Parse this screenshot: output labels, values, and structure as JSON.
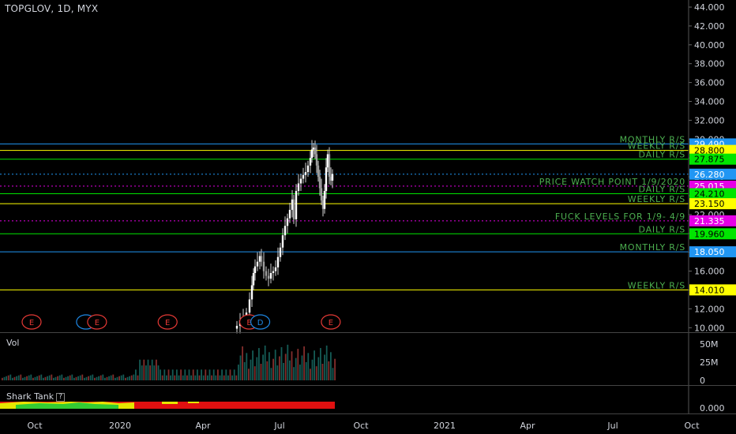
{
  "header": {
    "symbol": "TOPGLOV, 1D, MYX"
  },
  "colors": {
    "blue": "#2196f3",
    "green": "#00e500",
    "yellow": "#ffff00",
    "magenta": "#e600e6",
    "label_green": "#4caf50"
  },
  "price_axis": {
    "ticks": [
      "44.000",
      "42.000",
      "40.000",
      "38.000",
      "36.000",
      "34.000",
      "32.000",
      "30.000",
      "28.000",
      "26.000",
      "24.000",
      "22.000",
      "20.000",
      "18.000",
      "16.000",
      "14.000",
      "12.000",
      "10.000"
    ]
  },
  "levels": [
    {
      "price": 29.49,
      "value": "29.490",
      "color": "#2196f3",
      "text_color": "#fff",
      "dotted": false,
      "label": "MONTHLY R/S"
    },
    {
      "price": 28.8,
      "value": "28.800",
      "color": "#ffff00",
      "text_color": "#000",
      "dotted": false,
      "label": "WEEKLY R/S"
    },
    {
      "price": 27.875,
      "value": "27.875",
      "color": "#00e500",
      "text_color": "#000",
      "dotted": false,
      "label": "DAILY R/S"
    },
    {
      "price": 26.28,
      "value": "26.280",
      "color": "#2196f3",
      "text_color": "#fff",
      "dotted": true,
      "label": ""
    },
    {
      "price": 25.015,
      "value": "25.015",
      "color": "#e600e6",
      "text_color": "#fff",
      "dotted": true,
      "label": "PRICE WATCH POINT 1/9/2020"
    },
    {
      "price": 24.21,
      "value": "24.210",
      "color": "#00e500",
      "text_color": "#000",
      "dotted": false,
      "label": "DAILY R/S"
    },
    {
      "price": 23.15,
      "value": "23.150",
      "color": "#ffff00",
      "text_color": "#000",
      "dotted": false,
      "label": "WEEKLY R/S"
    },
    {
      "price": 21.335,
      "value": "21.335",
      "color": "#e600e6",
      "text_color": "#fff",
      "dotted": true,
      "label": "FUCK LEVELS FOR 1/9- 4/9"
    },
    {
      "price": 19.96,
      "value": "19.960",
      "color": "#00e500",
      "text_color": "#000",
      "dotted": false,
      "label": "DAILY R/S"
    },
    {
      "price": 18.05,
      "value": "18.050",
      "color": "#2196f3",
      "text_color": "#fff",
      "dotted": false,
      "label": "MONTHLY R/S"
    },
    {
      "price": 14.01,
      "value": "14.010",
      "color": "#ffff00",
      "text_color": "#000",
      "dotted": false,
      "label": "WEEKLY R/S"
    }
  ],
  "events": [
    {
      "label": "E",
      "kind": "earnings",
      "date": "2019-10"
    },
    {
      "label": "",
      "kind": "dividend",
      "date": "2019-12"
    },
    {
      "label": "E",
      "kind": "earnings",
      "date": "2019-12"
    },
    {
      "label": "E",
      "kind": "earnings",
      "date": "2020-03"
    },
    {
      "label": "E",
      "kind": "earnings",
      "date": "2020-06"
    },
    {
      "label": "D",
      "kind": "dividend",
      "date": "2020-06"
    },
    {
      "label": "E",
      "kind": "earnings",
      "date": "2020-09"
    }
  ],
  "volume": {
    "label": "Vol",
    "ticks": [
      "50M",
      "25M",
      "0"
    ]
  },
  "shark": {
    "label": "Shark Tank",
    "help_icon": "question-icon",
    "value": "0.000"
  },
  "time_axis": {
    "labels": [
      "Oct",
      "2020",
      "Apr",
      "Jul",
      "Oct",
      "2021",
      "Apr",
      "Jul",
      "Oct"
    ]
  }
}
